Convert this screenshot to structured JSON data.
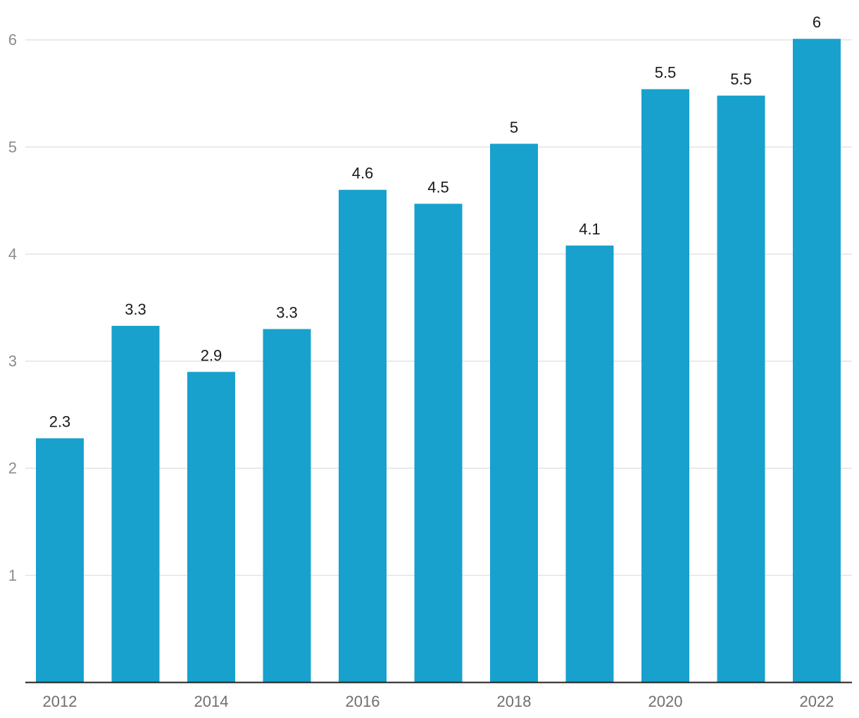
{
  "chart_data": {
    "type": "bar",
    "categories": [
      "2012",
      "2013",
      "2014",
      "2015",
      "2016",
      "2017",
      "2018",
      "2019",
      "2020",
      "2021",
      "2022"
    ],
    "values": [
      2.28,
      3.33,
      2.9,
      3.3,
      4.6,
      4.47,
      5.03,
      4.08,
      5.54,
      5.48,
      6.01
    ],
    "data_labels": [
      "2.3",
      "3.3",
      "2.9",
      "3.3",
      "4.6",
      "4.5",
      "5",
      "4.1",
      "5.5",
      "5.5",
      "6"
    ],
    "x_tick_labels": [
      "2012",
      "",
      "2014",
      "",
      "2016",
      "",
      "2018",
      "",
      "2020",
      "",
      "2022"
    ],
    "y_ticks": [
      1,
      2,
      3,
      4,
      5,
      6
    ],
    "ylim": [
      0,
      6.32
    ],
    "title": "",
    "xlabel": "",
    "ylabel": "",
    "grid": true,
    "legend": "none",
    "colors": {
      "bar": "#18a1cd",
      "grid": "#e3e3e3",
      "axis": "#1f1f1f",
      "data_label": "#1a1a1a",
      "y_tick": "#8c8c8c",
      "x_tick": "#6e6e6e"
    }
  }
}
